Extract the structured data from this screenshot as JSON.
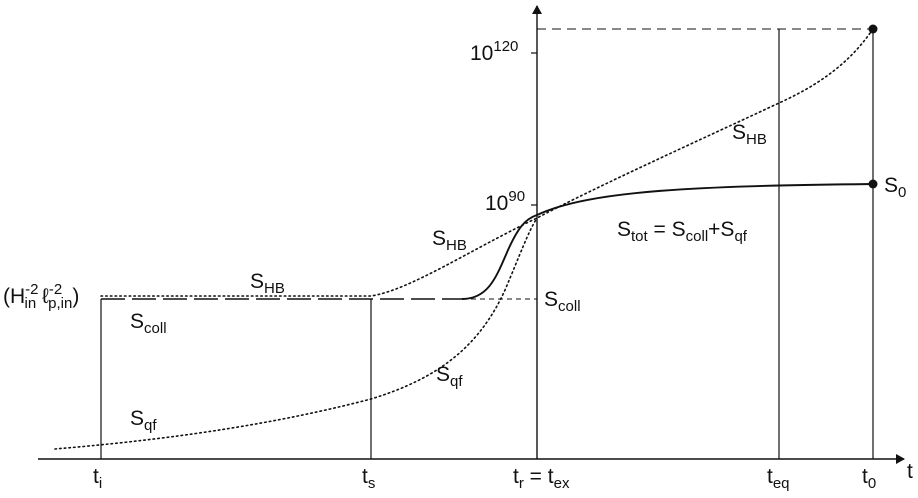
{
  "diagram": {
    "axis": {
      "x_label": "t",
      "y_ticks": [
        {
          "base": "10",
          "sup": "120"
        },
        {
          "base": "10",
          "sup": "90"
        }
      ],
      "y_init_label": {
        "p1": "(H",
        "sub1": "in",
        "sup1": "-2",
        "p2": " ℓ",
        "sub2": "p,in",
        "sup2": "-2",
        "p3": ")"
      }
    },
    "time_labels": [
      {
        "base": "t",
        "sub": "i"
      },
      {
        "base": "t",
        "sub": "s"
      },
      {
        "base": "t",
        "sub": "r",
        "tail": " = t",
        "sub2": "ex"
      },
      {
        "base": "t",
        "sub": "eq"
      },
      {
        "base": "t",
        "sub": "0"
      }
    ],
    "curve_labels": {
      "s_hb_plateau": {
        "base": "S",
        "sub": "HB"
      },
      "s_hb_rising": {
        "base": "S",
        "sub": "HB"
      },
      "s_hb_late": {
        "base": "S",
        "sub": "HB"
      },
      "s_coll_left": {
        "base": "S",
        "sub": "coll"
      },
      "s_coll_right": {
        "base": "S",
        "sub": "coll"
      },
      "s_qf_left": {
        "base": "S",
        "sub": "qf"
      },
      "s_qf_mid": {
        "base": "S",
        "sub": "qf"
      },
      "s_tot": {
        "p1": "S",
        "sub1": "tot",
        "p2": " = S",
        "sub2": "coll",
        "p3": "+S",
        "sub3": "qf"
      },
      "s_zero": {
        "base": "S",
        "sub": "0"
      }
    }
  }
}
